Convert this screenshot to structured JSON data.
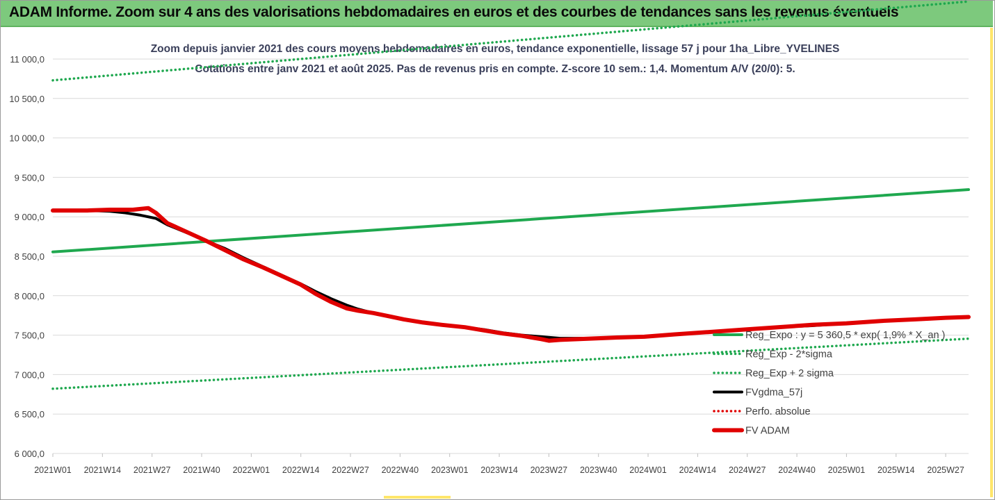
{
  "banner": {
    "title": "ADAM Informe. Zoom sur 4 ans des valorisations hebdomadaires en euros et des courbes de tendances sans les revenus éventuels",
    "background": "#7dc97d"
  },
  "chart_data": {
    "type": "line",
    "title": "Zoom depuis janvier 2021 des cours moyens hebdomadaires en euros, tendance exponentielle, lissage 57 j pour 1ha_Libre_YVELINES",
    "subtitle": "Cotations entre janv 2021 et août 2025.  Pas de revenus pris en compte. Z-score 10 sem.: 1,4. Momentum A/V (20/0): 5.",
    "xlabel": "",
    "ylabel": "",
    "ylim": [
      6000,
      11000
    ],
    "yticks": [
      6000,
      6500,
      7000,
      7500,
      8000,
      8500,
      9000,
      9500,
      10000,
      10500,
      11000
    ],
    "ytick_labels": [
      "6 000,0",
      "6 500,0",
      "7 000,0",
      "7 500,0",
      "8 000,0",
      "8 500,0",
      "9 000,0",
      "9 500,0",
      "10 000,0",
      "10 500,0",
      "11 000,0"
    ],
    "x_range": [
      "2021W01",
      "2025W33"
    ],
    "x_tick_labels": [
      "2021W01",
      "2021W14",
      "2021W27",
      "2021W40",
      "2022W01",
      "2022W14",
      "2022W27",
      "2022W40",
      "2023W01",
      "2023W14",
      "2023W27",
      "2023W40",
      "2024W01",
      "2024W14",
      "2024W27",
      "2024W40",
      "2025W01",
      "2025W14",
      "2025W27"
    ],
    "grid": "horizontal",
    "legend_position": "bottom-right",
    "series": [
      {
        "name": "Reg_Expo : y = 5 360,5 * exp( 1,9% *  X_an )",
        "style": "solid",
        "color": "#1fa84f",
        "x": [
          "2021W01",
          "2025W33"
        ],
        "values": [
          8555,
          9345
        ]
      },
      {
        "name": "Reg_Exp - 2*sigma",
        "style": "dotted",
        "color": "#1fa84f",
        "x": [
          "2021W01",
          "2025W33"
        ],
        "values": [
          6820,
          7455
        ]
      },
      {
        "name": "Reg_Exp + 2 sigma",
        "style": "dotted",
        "color": "#1fa84f",
        "x": [
          "2021W01",
          "2025W33"
        ],
        "values": [
          10730,
          11730
        ]
      },
      {
        "name": "FVgdma_57j",
        "style": "solid",
        "color": "#000000",
        "x": [
          "2021W01",
          "2021W10",
          "2021W16",
          "2021W20",
          "2021W24",
          "2021W28",
          "2021W31",
          "2021W36",
          "2021W41",
          "2021W46",
          "2021W51",
          "2022W04",
          "2022W09",
          "2022W14",
          "2022W18",
          "2022W22",
          "2022W26",
          "2022W29",
          "2022W33",
          "2022W37",
          "2022W41",
          "2022W46",
          "2022W51",
          "2023W05",
          "2023W10",
          "2023W15",
          "2023W20",
          "2023W25",
          "2023W30",
          "2023W35",
          "2023W40",
          "2023W45",
          "2023W52",
          "2024W08",
          "2024W17",
          "2024W26",
          "2024W35",
          "2024W44",
          "2025W01",
          "2025W10",
          "2025W19",
          "2025W27",
          "2025W33"
        ],
        "values": [
          9080,
          9080,
          9070,
          9050,
          9020,
          8980,
          8900,
          8800,
          8700,
          8600,
          8480,
          8370,
          8260,
          8150,
          8050,
          7960,
          7880,
          7830,
          7780,
          7740,
          7700,
          7660,
          7630,
          7600,
          7570,
          7530,
          7500,
          7480,
          7460,
          7460,
          7460,
          7470,
          7480,
          7510,
          7540,
          7570,
          7600,
          7620,
          7650,
          7680,
          7700,
          7720,
          7730
        ]
      },
      {
        "name": "Perfo. absolue",
        "style": "dotted",
        "color": "#e00000",
        "x": [],
        "values": []
      },
      {
        "name": "FV ADAM",
        "style": "solid",
        "color": "#e00000",
        "x": [
          "2021W01",
          "2021W10",
          "2021W16",
          "2021W20",
          "2021W22",
          "2021W24",
          "2021W26",
          "2021W28",
          "2021W31",
          "2021W36",
          "2021W41",
          "2021W46",
          "2021W51",
          "2022W04",
          "2022W09",
          "2022W14",
          "2022W18",
          "2022W22",
          "2022W26",
          "2022W29",
          "2022W33",
          "2022W37",
          "2022W41",
          "2022W46",
          "2022W51",
          "2023W05",
          "2023W10",
          "2023W15",
          "2023W20",
          "2023W25",
          "2023W27",
          "2023W30",
          "2023W35",
          "2023W40",
          "2023W45",
          "2023W52",
          "2024W08",
          "2024W17",
          "2024W26",
          "2024W35",
          "2024W44",
          "2025W01",
          "2025W10",
          "2025W19",
          "2025W27",
          "2025W33"
        ],
        "values": [
          9080,
          9080,
          9090,
          9090,
          9090,
          9100,
          9110,
          9050,
          8920,
          8810,
          8700,
          8580,
          8460,
          8360,
          8250,
          8140,
          8020,
          7920,
          7840,
          7810,
          7780,
          7740,
          7700,
          7660,
          7630,
          7600,
          7560,
          7520,
          7490,
          7450,
          7430,
          7440,
          7450,
          7460,
          7470,
          7480,
          7510,
          7540,
          7570,
          7600,
          7630,
          7650,
          7680,
          7700,
          7720,
          7730
        ]
      }
    ]
  }
}
